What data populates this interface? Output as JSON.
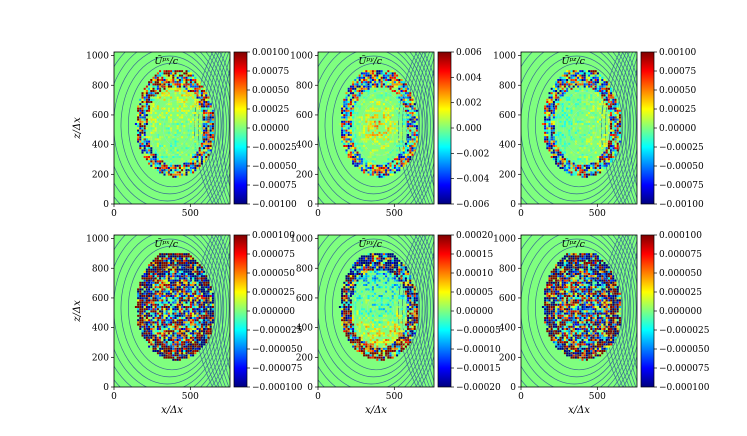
{
  "chart_data": {
    "type": "heatmap",
    "layout": "2x3 grid of panels",
    "shared_axes": {
      "xlabel": "x/Δx",
      "ylabel": "z/Δx",
      "x_ticks": [
        "0",
        "500"
      ],
      "y_ticks": [
        "0",
        "200",
        "400",
        "600",
        "800",
        "1000"
      ],
      "xlim": [
        0,
        760
      ],
      "ylim": [
        0,
        1024
      ]
    },
    "colormap": [
      "#00007f",
      "#0000ff",
      "#007fff",
      "#00ffff",
      "#7fff7f",
      "#ffff00",
      "#ff7f00",
      "#ff0000",
      "#7f0000"
    ],
    "panels": [
      {
        "title": "Ũᵖˣ/c",
        "row": 0,
        "col": 0,
        "pattern": "vertical-dipole",
        "noise": 0.55,
        "colorbar_range": [
          -0.001,
          0.001
        ],
        "colorbar_ticks": [
          "0.00100",
          "0.00075",
          "0.00050",
          "0.00025",
          "0.00000",
          "−0.00025",
          "−0.00050",
          "−0.00075",
          "−0.00100"
        ]
      },
      {
        "title": "Ũᵖʸ/c",
        "row": 0,
        "col": 1,
        "pattern": "center-peak",
        "noise": 0.45,
        "colorbar_range": [
          -0.006,
          0.006
        ],
        "colorbar_ticks": [
          "0.006",
          "0.004",
          "0.002",
          "0.000",
          "−0.002",
          "−0.004",
          "−0.006"
        ]
      },
      {
        "title": "Ũᵖᶻ/c",
        "row": 0,
        "col": 2,
        "pattern": "horizontal-dipole",
        "noise": 0.5,
        "colorbar_range": [
          -0.001,
          0.001
        ],
        "colorbar_ticks": [
          "0.00100",
          "0.00075",
          "0.00050",
          "0.00025",
          "0.00000",
          "−0.00025",
          "−0.00050",
          "−0.00075",
          "−0.00100"
        ]
      },
      {
        "title": "Ũᵖˣ/c",
        "row": 1,
        "col": 0,
        "pattern": "noisy",
        "noise": 1.4,
        "colorbar_range": [
          -0.0001,
          0.0001
        ],
        "colorbar_ticks": [
          "0.000100",
          "0.000075",
          "0.000050",
          "0.000025",
          "0.000000",
          "−0.000025",
          "−0.000050",
          "−0.000075",
          "−0.000100"
        ]
      },
      {
        "title": "Ũᵖʸ/c",
        "row": 1,
        "col": 1,
        "pattern": "top-bottom",
        "noise": 0.8,
        "colorbar_range": [
          -0.0002,
          0.0002
        ],
        "colorbar_ticks": [
          "0.00020",
          "0.00015",
          "0.00010",
          "0.00005",
          "0.00000",
          "−0.00005",
          "−0.00010",
          "−0.00015",
          "−0.00020"
        ]
      },
      {
        "title": "Ũᵖᶻ/c",
        "row": 1,
        "col": 2,
        "pattern": "noisy",
        "noise": 1.3,
        "colorbar_range": [
          -0.0001,
          0.0001
        ],
        "colorbar_ticks": [
          "0.000100",
          "0.000075",
          "0.000050",
          "0.000025",
          "0.000000",
          "−0.000025",
          "−0.000050",
          "−0.000075",
          "−0.000100"
        ]
      }
    ],
    "background_color": "#7fff7f",
    "contour_color": "#2f5597"
  }
}
